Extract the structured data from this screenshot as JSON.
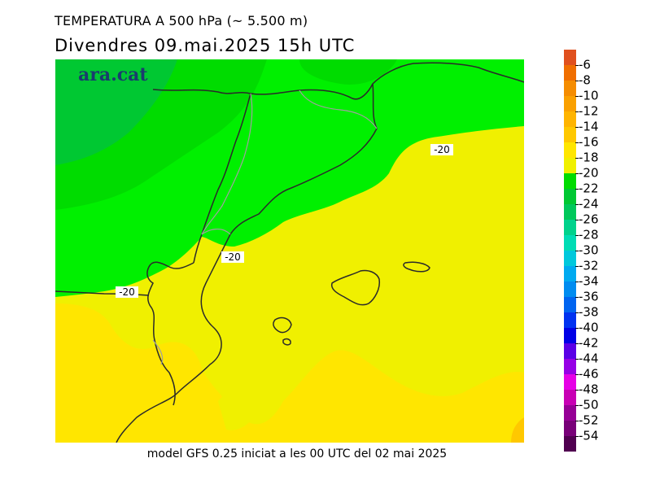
{
  "header": {
    "title": "TEMPERATURA A 500 hPa (~ 5.500 m)",
    "subtitle": "Divendres  09.mai.2025  15h UTC"
  },
  "map": {
    "logo": "ara.cat",
    "isotherm_labels": [
      "-20",
      "-20",
      "-20"
    ],
    "colors": {
      "green_dark": "#00c832",
      "green": "#00dc00",
      "green_light": "#00f000",
      "yellow_light": "#f0f000",
      "yellow": "#ffe600",
      "amber": "#ffc800",
      "coast": "#2a2a2a",
      "border": "#a0a0a0"
    }
  },
  "footer": {
    "note": "model GFS 0.25 iniciat a les 00 UTC del 02 mai 2025"
  },
  "legend": {
    "labels": [
      "-6",
      "-8",
      "-10",
      "-12",
      "-14",
      "-16",
      "-18",
      "-20",
      "-22",
      "-24",
      "-26",
      "-28",
      "-30",
      "-32",
      "-34",
      "-36",
      "-38",
      "-40",
      "-42",
      "-44",
      "-46",
      "-48",
      "-50",
      "-52",
      "-54"
    ],
    "colors": [
      "#e0501e",
      "#f06e00",
      "#f58c00",
      "#faa000",
      "#ffb400",
      "#ffc800",
      "#ffe600",
      "#f0f000",
      "#00dc00",
      "#00c832",
      "#00c85a",
      "#00d28c",
      "#00dcb4",
      "#00c8dc",
      "#00aaf0",
      "#008cf0",
      "#0064f0",
      "#0032f0",
      "#0000e6",
      "#5a00e6",
      "#9600e6",
      "#e600e6",
      "#c800b4",
      "#960096",
      "#780078",
      "#500050"
    ]
  }
}
